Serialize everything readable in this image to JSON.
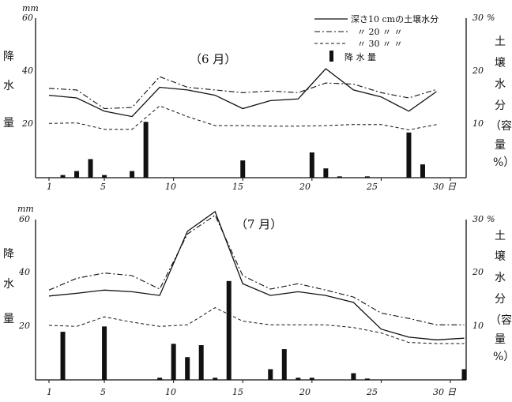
{
  "chart_data": [
    {
      "type": "bar+line",
      "month_label": "（6 月）",
      "left_axis": {
        "unit": "mm",
        "ticks": [
          "60",
          "40",
          "20"
        ],
        "label_chars": [
          "降",
          "水",
          "量"
        ],
        "ylim": [
          0,
          60
        ]
      },
      "right_axis": {
        "unit": "%",
        "ticks": [
          "30",
          "20",
          "10"
        ],
        "label_chars": [
          "土",
          "壌",
          "水",
          "分",
          "（容",
          "量",
          "%）"
        ],
        "ylim": [
          0,
          30
        ]
      },
      "x_ticks": [
        "1",
        "5",
        "10",
        "15",
        "20",
        "25",
        "30"
      ],
      "x_end_label": "日",
      "legend": [
        {
          "label": "深さ10 cmの土壌水分",
          "style": "solid"
        },
        {
          "label": "〃 20 〃 〃",
          "style": "dashdot"
        },
        {
          "label": "〃 30 〃 〃",
          "style": "dashed"
        },
        {
          "label": "降 水 量",
          "style": "bar"
        }
      ],
      "x_range": [
        1,
        31
      ],
      "precipitation": {
        "days": [
          2,
          3,
          4,
          5,
          7,
          8,
          15,
          20,
          21,
          22,
          24,
          27,
          28
        ],
        "values": [
          1,
          2.5,
          7,
          1,
          2.5,
          21,
          6.5,
          9.5,
          3.5,
          0.5,
          0.5,
          17,
          5
        ]
      },
      "series": [
        {
          "depth": "10",
          "style": "solid",
          "x": [
            1,
            3,
            5,
            7,
            9,
            11,
            13,
            15,
            17,
            19,
            21,
            23,
            25,
            27,
            29
          ],
          "y": [
            15.5,
            15,
            12.5,
            11.5,
            17,
            16.5,
            15.5,
            13,
            14.5,
            14.8,
            20.5,
            16.5,
            15.2,
            12.5,
            16.2
          ]
        },
        {
          "depth": "20",
          "style": "dashdot",
          "x": [
            1,
            3,
            5,
            7,
            9,
            11,
            13,
            15,
            17,
            19,
            21,
            23,
            25,
            27,
            29
          ],
          "y": [
            16.8,
            16.5,
            13,
            13.2,
            19,
            17,
            16.5,
            16,
            16.3,
            16,
            17.8,
            17.6,
            16,
            15,
            16.6
          ]
        },
        {
          "depth": "30",
          "style": "dashed",
          "x": [
            1,
            3,
            5,
            7,
            9,
            11,
            13,
            15,
            17,
            19,
            21,
            23,
            25,
            27,
            29
          ],
          "y": [
            10.2,
            10.3,
            9.1,
            9.1,
            13.5,
            11.5,
            9.8,
            9.8,
            9.7,
            9.7,
            9.8,
            10,
            10,
            9,
            10
          ]
        }
      ]
    },
    {
      "type": "bar+line",
      "month_label": "（7 月）",
      "left_axis": {
        "unit": "mm",
        "ticks": [
          "60",
          "40",
          "20"
        ],
        "label_chars": [
          "降",
          "水",
          "量"
        ],
        "ylim": [
          0,
          60
        ]
      },
      "right_axis": {
        "unit": "%",
        "ticks": [
          "30",
          "20",
          "10"
        ],
        "label_chars": [
          "土",
          "壌",
          "水",
          "分",
          "（容",
          "量",
          "%）"
        ],
        "ylim": [
          0,
          30
        ]
      },
      "x_ticks": [
        "1",
        "5",
        "10",
        "15",
        "20",
        "25",
        "30"
      ],
      "x_end_label": "日",
      "x_range": [
        1,
        31
      ],
      "precipitation": {
        "days": [
          2,
          5,
          9,
          10,
          11,
          12,
          13,
          14,
          17,
          18,
          19,
          20,
          23,
          24,
          31
        ],
        "values": [
          18,
          20,
          0.8,
          13.5,
          8.5,
          13,
          0.8,
          37,
          4,
          11.5,
          0.8,
          0.8,
          2.5,
          0.5,
          4
        ]
      },
      "series": [
        {
          "depth": "10",
          "style": "solid",
          "x": [
            1,
            3,
            5,
            7,
            9,
            11,
            13,
            15,
            17,
            19,
            21,
            23,
            25,
            27,
            29,
            31
          ],
          "y": [
            15.7,
            16.2,
            16.8,
            16.5,
            15.8,
            27.8,
            31.5,
            18,
            15.8,
            16.5,
            15.8,
            14.5,
            9.5,
            8,
            7.5,
            7.8
          ]
        },
        {
          "depth": "20",
          "style": "dashdot",
          "x": [
            1,
            3,
            5,
            7,
            9,
            11,
            13,
            15,
            17,
            19,
            21,
            23,
            25,
            27,
            29,
            31
          ],
          "y": [
            16.8,
            19,
            20,
            19.5,
            17,
            27.3,
            30.8,
            19.5,
            17,
            18,
            16.8,
            15.5,
            12.5,
            11.5,
            10.3,
            10.3
          ]
        },
        {
          "depth": "30",
          "style": "dashed",
          "x": [
            1,
            3,
            5,
            7,
            9,
            11,
            13,
            15,
            17,
            19,
            21,
            23,
            25,
            27,
            29,
            31
          ],
          "y": [
            10.2,
            10,
            11.8,
            10.8,
            10,
            10.3,
            13.5,
            11,
            10.3,
            10.3,
            10.3,
            9.8,
            8.8,
            7,
            6.8,
            6.8
          ]
        }
      ]
    }
  ]
}
